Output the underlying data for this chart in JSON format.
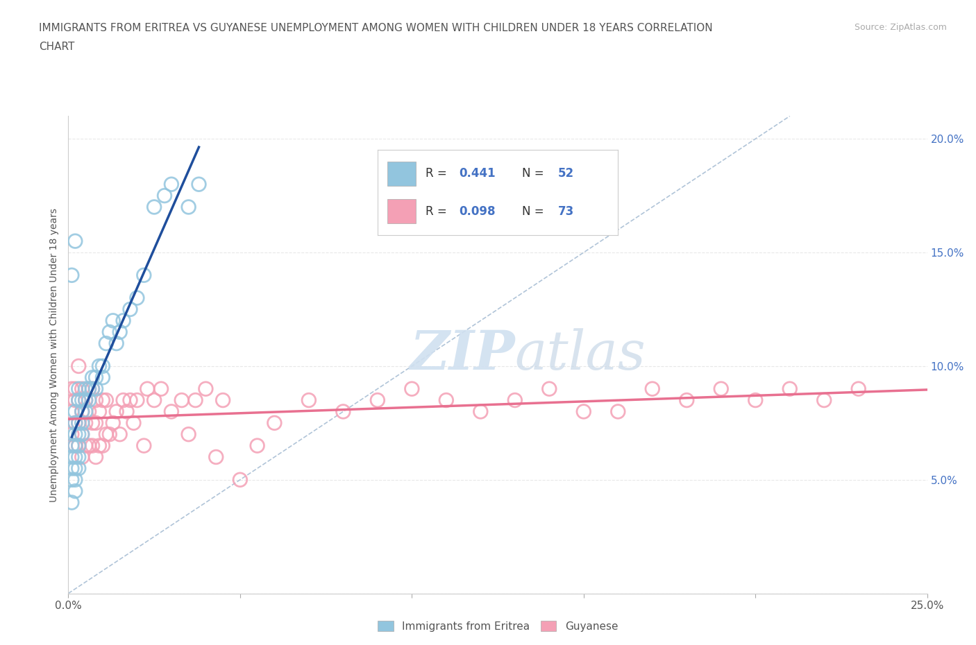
{
  "title_line1": "IMMIGRANTS FROM ERITREA VS GUYANESE UNEMPLOYMENT AMONG WOMEN WITH CHILDREN UNDER 18 YEARS CORRELATION",
  "title_line2": "CHART",
  "source": "Source: ZipAtlas.com",
  "ylabel": "Unemployment Among Women with Children Under 18 years",
  "xlim": [
    0.0,
    0.25
  ],
  "ylim": [
    0.0,
    0.21
  ],
  "xticks": [
    0.0,
    0.05,
    0.1,
    0.15,
    0.2,
    0.25
  ],
  "xtick_labels": [
    "0.0%",
    "",
    "",
    "",
    "",
    "25.0%"
  ],
  "yticks": [
    0.0,
    0.05,
    0.1,
    0.15,
    0.2
  ],
  "ytick_labels": [
    "",
    "",
    "",
    "",
    ""
  ],
  "right_yticks": [
    0.05,
    0.1,
    0.15,
    0.2
  ],
  "right_ytick_labels": [
    "5.0%",
    "10.0%",
    "15.0%",
    "20.0%"
  ],
  "eritrea_color": "#92c5de",
  "guyanese_color": "#f4a0b5",
  "eritrea_trend_color": "#1f4e9c",
  "guyanese_trend_color": "#e87090",
  "diagonal_color": "#b0c4d8",
  "watermark_color": "#d0e0f0",
  "background_color": "#ffffff",
  "grid_color": "#e8e8e8",
  "eritrea_x": [
    0.001,
    0.001,
    0.001,
    0.001,
    0.001,
    0.002,
    0.002,
    0.002,
    0.002,
    0.002,
    0.002,
    0.002,
    0.002,
    0.003,
    0.003,
    0.003,
    0.003,
    0.003,
    0.003,
    0.003,
    0.004,
    0.004,
    0.004,
    0.004,
    0.005,
    0.005,
    0.005,
    0.006,
    0.006,
    0.007,
    0.007,
    0.008,
    0.008,
    0.009,
    0.01,
    0.01,
    0.011,
    0.012,
    0.013,
    0.014,
    0.015,
    0.016,
    0.018,
    0.02,
    0.022,
    0.025,
    0.028,
    0.03,
    0.035,
    0.038,
    0.001,
    0.002
  ],
  "eritrea_y": [
    0.04,
    0.05,
    0.055,
    0.06,
    0.065,
    0.045,
    0.05,
    0.055,
    0.06,
    0.065,
    0.07,
    0.075,
    0.08,
    0.055,
    0.06,
    0.065,
    0.07,
    0.075,
    0.085,
    0.09,
    0.07,
    0.075,
    0.08,
    0.085,
    0.08,
    0.085,
    0.09,
    0.085,
    0.09,
    0.09,
    0.095,
    0.09,
    0.095,
    0.1,
    0.095,
    0.1,
    0.11,
    0.115,
    0.12,
    0.11,
    0.115,
    0.12,
    0.125,
    0.13,
    0.14,
    0.17,
    0.175,
    0.18,
    0.17,
    0.18,
    0.14,
    0.155
  ],
  "guyanese_x": [
    0.001,
    0.001,
    0.001,
    0.002,
    0.002,
    0.002,
    0.002,
    0.003,
    0.003,
    0.003,
    0.003,
    0.004,
    0.004,
    0.004,
    0.004,
    0.005,
    0.005,
    0.005,
    0.006,
    0.006,
    0.006,
    0.007,
    0.007,
    0.007,
    0.008,
    0.008,
    0.008,
    0.009,
    0.009,
    0.01,
    0.01,
    0.011,
    0.011,
    0.012,
    0.013,
    0.014,
    0.015,
    0.016,
    0.017,
    0.018,
    0.019,
    0.02,
    0.022,
    0.023,
    0.025,
    0.027,
    0.03,
    0.033,
    0.035,
    0.037,
    0.04,
    0.043,
    0.045,
    0.05,
    0.055,
    0.06,
    0.07,
    0.08,
    0.09,
    0.1,
    0.11,
    0.12,
    0.13,
    0.14,
    0.15,
    0.16,
    0.17,
    0.18,
    0.19,
    0.2,
    0.21,
    0.22,
    0.23
  ],
  "guyanese_y": [
    0.07,
    0.08,
    0.09,
    0.065,
    0.075,
    0.085,
    0.09,
    0.065,
    0.075,
    0.085,
    0.1,
    0.06,
    0.07,
    0.08,
    0.09,
    0.065,
    0.075,
    0.085,
    0.065,
    0.08,
    0.09,
    0.065,
    0.075,
    0.09,
    0.06,
    0.075,
    0.085,
    0.065,
    0.08,
    0.065,
    0.085,
    0.07,
    0.085,
    0.07,
    0.075,
    0.08,
    0.07,
    0.085,
    0.08,
    0.085,
    0.075,
    0.085,
    0.065,
    0.09,
    0.085,
    0.09,
    0.08,
    0.085,
    0.07,
    0.085,
    0.09,
    0.06,
    0.085,
    0.05,
    0.065,
    0.075,
    0.085,
    0.08,
    0.085,
    0.09,
    0.085,
    0.08,
    0.085,
    0.09,
    0.08,
    0.08,
    0.09,
    0.085,
    0.09,
    0.085,
    0.09,
    0.085,
    0.09
  ],
  "eritrea_R": 0.441,
  "eritrea_N": 52,
  "guyanese_R": 0.098,
  "guyanese_N": 73,
  "legend_R_color": "#4472c4",
  "legend_N_color": "#4472c4",
  "watermark": "ZIPatlas"
}
